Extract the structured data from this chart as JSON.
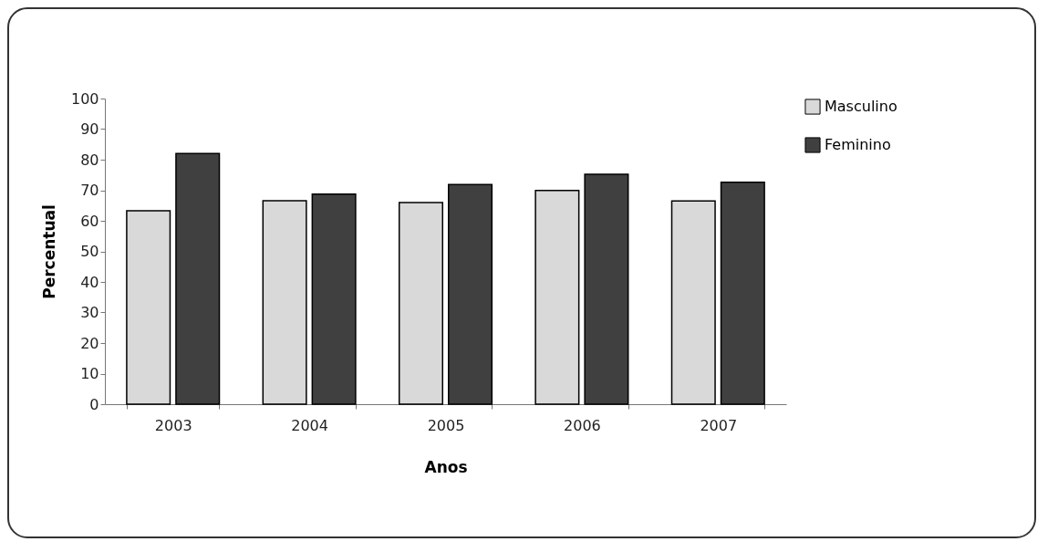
{
  "chart_data": {
    "type": "bar",
    "xlabel": "Anos",
    "ylabel": "Percentual",
    "categories": [
      "2003",
      "2004",
      "2005",
      "2006",
      "2007"
    ],
    "series": [
      {
        "name": "Masculino",
        "color": "#d9d9d9",
        "values": [
          63.3,
          66.6,
          66.0,
          69.9,
          66.5
        ]
      },
      {
        "name": "Feminino",
        "color": "#404040",
        "values": [
          82.0,
          68.7,
          71.9,
          75.2,
          72.6
        ]
      }
    ],
    "ylim": [
      0,
      100
    ],
    "yticks": [
      0,
      10,
      20,
      30,
      40,
      50,
      60,
      70,
      80,
      90,
      100
    ],
    "grid": false,
    "legend": "right"
  }
}
